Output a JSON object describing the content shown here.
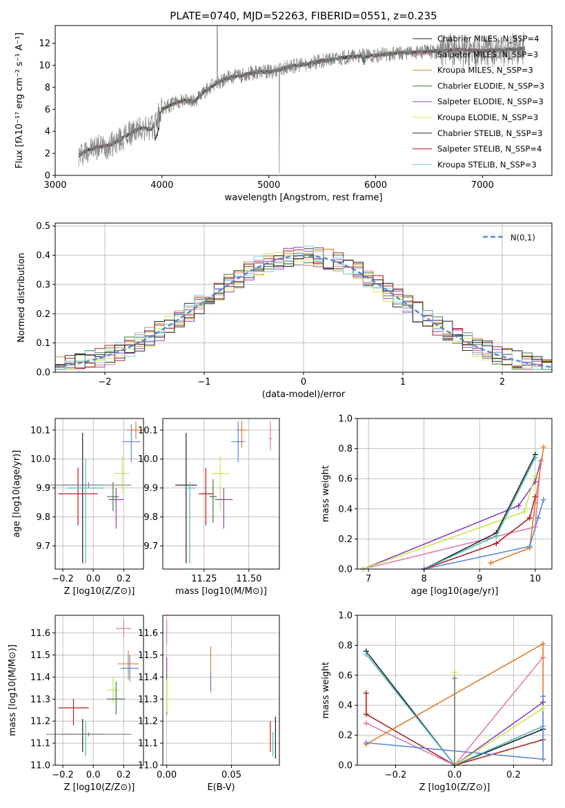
{
  "colors": {
    "chabrier_miles": "#1f1f1f",
    "salpeter_miles": "#e07b91",
    "kroupa_miles": "#d18d2a",
    "chabrier_elodie": "#3f7a3f",
    "salpeter_elodie": "#9a3fb8",
    "kroupa_elodie": "#d6e84a",
    "chabrier_stelib": "#2b2b2b",
    "salpeter_stelib": "#b01e1e",
    "kroupa_stelib": "#7fd6e0",
    "blue": "#5b86d6",
    "orange": "#e07b2a",
    "pink": "#e07bb0",
    "purple": "#8a3fb8",
    "lime": "#c8e84a",
    "teal": "#4fb8b8",
    "grey": "#808080"
  },
  "chart_data": [
    {
      "id": "spectrum",
      "type": "line",
      "title": "PLATE=0740, MJD=52263, FIBERID=0551, z=0.235",
      "xlabel": "wavelength [Angstrom, rest frame]",
      "ylabel": "Flux [fλ10⁻¹⁷ erg cm⁻² s⁻¹ A⁻¹]",
      "xlim": [
        3000,
        7650
      ],
      "ylim": [
        0,
        13.6
      ],
      "xticks": [
        3000,
        4000,
        5000,
        6000,
        7000
      ],
      "yticks": [
        0,
        2,
        4,
        6,
        8,
        10,
        12
      ],
      "continuum": [
        [
          3220,
          1.8
        ],
        [
          3300,
          2.3
        ],
        [
          3400,
          2.6
        ],
        [
          3500,
          2.7
        ],
        [
          3600,
          3.2
        ],
        [
          3700,
          3.8
        ],
        [
          3800,
          4.3
        ],
        [
          3900,
          4.2
        ],
        [
          4000,
          6.0
        ],
        [
          4100,
          6.5
        ],
        [
          4200,
          6.8
        ],
        [
          4300,
          6.7
        ],
        [
          4400,
          7.6
        ],
        [
          4500,
          8.3
        ],
        [
          4600,
          8.8
        ],
        [
          4700,
          9.0
        ],
        [
          4800,
          9.2
        ],
        [
          4900,
          9.4
        ],
        [
          5000,
          9.4
        ],
        [
          5100,
          9.6
        ],
        [
          5200,
          9.9
        ],
        [
          5300,
          10.0
        ],
        [
          5400,
          10.2
        ],
        [
          5500,
          10.4
        ],
        [
          5600,
          10.5
        ],
        [
          5700,
          10.7
        ],
        [
          5800,
          10.8
        ],
        [
          5900,
          10.8
        ],
        [
          6000,
          10.9
        ],
        [
          6200,
          11.1
        ],
        [
          6400,
          11.2
        ],
        [
          6600,
          11.3
        ],
        [
          6800,
          11.4
        ],
        [
          7000,
          11.3
        ],
        [
          7200,
          11.4
        ],
        [
          7400,
          11.5
        ]
      ],
      "legend": [
        "Chabrier MILES, N_SSP=4",
        "Salpeter MILES, N_SSP=3",
        "Kroupa MILES, N_SSP=3",
        "Chabrier ELODIE, N_SSP=3",
        "Salpeter ELODIE, N_SSP=3",
        "Kroupa ELODIE, N_SSP=3",
        "Chabrier STELIB, N_SSP=3",
        "Salpeter STELIB, N_SSP=4",
        "Kroupa STELIB, N_SSP=3"
      ],
      "legend_placement": "upper right",
      "grid": false
    },
    {
      "id": "residuals",
      "type": "bar",
      "xlabel": "(data-model)/error",
      "ylabel": "Normed distribution",
      "xlim": [
        -2.5,
        2.5
      ],
      "ylim": [
        0,
        0.51
      ],
      "xticks": [
        -2,
        -1,
        0,
        1,
        2
      ],
      "yticks": [
        0.0,
        0.1,
        0.2,
        0.3,
        0.4,
        0.5
      ],
      "bin_width": 0.1,
      "curve_label": "N(0,1)",
      "legend_placement": "upper right",
      "grid": true
    },
    {
      "id": "age_vs_Z",
      "type": "scatter",
      "xlabel": "Z [log10(Z/Z⊙)]",
      "ylabel": "age  [log10(age/yr)]",
      "xlim": [
        -0.25,
        0.33
      ],
      "ylim": [
        9.62,
        10.14
      ],
      "xticks": [
        -0.2,
        0.0,
        0.2
      ],
      "yticks": [
        9.7,
        9.8,
        9.9,
        10.0,
        10.1
      ],
      "points": [
        {
          "x": -0.07,
          "y": 9.91,
          "xerr": 0.14,
          "ylo": 9.64,
          "yhi": 10.09,
          "c": "chabrier_miles"
        },
        {
          "x": 0.28,
          "y": 10.1,
          "xerr": 0.06,
          "ylo": 10.07,
          "yhi": 10.13,
          "c": "orange"
        },
        {
          "x": 0.25,
          "y": 10.06,
          "xerr": 0.06,
          "ylo": 9.99,
          "yhi": 10.12,
          "c": "blue"
        },
        {
          "x": 0.19,
          "y": 9.95,
          "xerr": 0.05,
          "ylo": 9.88,
          "yhi": 10.01,
          "c": "lime"
        },
        {
          "x": 0.15,
          "y": 9.86,
          "xerr": 0.05,
          "ylo": 9.76,
          "yhi": 9.9,
          "c": "purple"
        },
        {
          "x": 0.13,
          "y": 9.87,
          "xerr": 0.04,
          "ylo": 9.82,
          "yhi": 9.92,
          "c": "chabrier_elodie"
        },
        {
          "x": -0.1,
          "y": 9.88,
          "xerr": 0.13,
          "ylo": 9.77,
          "yhi": 9.97,
          "c": "salpeter_stelib"
        },
        {
          "x": -0.05,
          "y": 9.9,
          "xerr": 0.12,
          "ylo": 9.64,
          "yhi": 10.0,
          "c": "teal"
        },
        {
          "x": -0.03,
          "y": 9.91,
          "xerr": 0.28,
          "ylo": 9.9,
          "yhi": 9.92,
          "c": "grey"
        }
      ],
      "grid": true
    },
    {
      "id": "age_vs_mass",
      "type": "scatter",
      "xlabel": "mass [log10(M/M⊙)]",
      "xlim": [
        11.02,
        11.67
      ],
      "ylim": [
        9.62,
        10.14
      ],
      "xticks": [
        11.0,
        11.25,
        11.5
      ],
      "yticks": [
        9.7,
        9.8,
        9.9,
        10.0,
        10.1
      ],
      "points": [
        {
          "x": 11.15,
          "y": 9.91,
          "xerr": 0.06,
          "ylo": 9.64,
          "yhi": 10.09,
          "c": "chabrier_miles"
        },
        {
          "x": 11.46,
          "y": 10.1,
          "xerr": 0.03,
          "ylo": 10.04,
          "yhi": 10.13,
          "c": "orange"
        },
        {
          "x": 11.44,
          "y": 10.06,
          "xerr": 0.04,
          "ylo": 9.99,
          "yhi": 10.13,
          "c": "blue"
        },
        {
          "x": 11.62,
          "y": 10.07,
          "xerr": 0.01,
          "ylo": 10.03,
          "yhi": 10.13,
          "c": "pink"
        },
        {
          "x": 11.34,
          "y": 9.95,
          "xerr": 0.05,
          "ylo": 9.82,
          "yhi": 10.01,
          "c": "lime"
        },
        {
          "x": 11.36,
          "y": 9.86,
          "xerr": 0.05,
          "ylo": 9.76,
          "yhi": 9.9,
          "c": "purple"
        },
        {
          "x": 11.3,
          "y": 9.87,
          "xerr": 0.02,
          "ylo": 9.78,
          "yhi": 9.93,
          "c": "chabrier_elodie"
        },
        {
          "x": 11.26,
          "y": 9.88,
          "xerr": 0.04,
          "ylo": 9.77,
          "yhi": 9.97,
          "c": "salpeter_stelib"
        },
        {
          "x": 11.17,
          "y": 9.9,
          "xerr": 0.03,
          "ylo": 9.64,
          "yhi": 9.92,
          "c": "teal"
        }
      ],
      "grid": true
    },
    {
      "id": "weight_vs_age",
      "type": "line",
      "xlabel": "age  [log10(age/yr)]",
      "ylabel": "mass weight",
      "xlim": [
        6.8,
        10.3
      ],
      "ylim": [
        0,
        1.0
      ],
      "xticks": [
        7,
        8,
        9,
        10
      ],
      "yticks": [
        0.0,
        0.2,
        0.4,
        0.6,
        0.8,
        1.0
      ],
      "series": [
        {
          "c": "purple",
          "x": [
            6.9,
            9.7,
            10.0,
            10.1
          ],
          "y": [
            0.0,
            0.42,
            0.58,
            0.72
          ]
        },
        {
          "c": "pink",
          "x": [
            6.9,
            10.0,
            10.1
          ],
          "y": [
            0.0,
            0.28,
            0.72
          ]
        },
        {
          "c": "lime",
          "x": [
            6.9,
            9.8,
            10.0
          ],
          "y": [
            0.0,
            0.38,
            0.62
          ]
        },
        {
          "c": "chabrier_miles",
          "x": [
            8.0,
            9.3,
            10.0
          ],
          "y": [
            0.0,
            0.24,
            0.76
          ]
        },
        {
          "c": "teal",
          "x": [
            8.0,
            9.3,
            10.0
          ],
          "y": [
            0.0,
            0.22,
            0.74
          ]
        },
        {
          "c": "salpeter_stelib",
          "x": [
            8.0,
            9.3,
            9.9,
            10.0
          ],
          "y": [
            0.0,
            0.17,
            0.34,
            0.48
          ]
        },
        {
          "c": "orange",
          "x": [
            9.2,
            9.9,
            10.0,
            10.15
          ],
          "y": [
            0.04,
            0.14,
            0.44,
            0.81
          ]
        },
        {
          "c": "blue",
          "x": [
            8.0,
            9.9,
            10.05,
            10.15
          ],
          "y": [
            0.0,
            0.15,
            0.34,
            0.46
          ]
        }
      ],
      "grid": true
    },
    {
      "id": "mass_vs_Z",
      "type": "scatter",
      "xlabel": "Z [log10(Z/Z⊙)]",
      "ylabel": "mass [log10(M/M⊙)]",
      "xlim": [
        -0.25,
        0.33
      ],
      "ylim": [
        11.0,
        11.68
      ],
      "xticks": [
        -0.2,
        0.0,
        0.2
      ],
      "yticks": [
        11.0,
        11.1,
        11.2,
        11.3,
        11.4,
        11.5,
        11.6
      ],
      "points": [
        {
          "x": -0.07,
          "y": 11.14,
          "xerr": 0.14,
          "ylo": 11.06,
          "yhi": 11.21,
          "c": "chabrier_miles"
        },
        {
          "x": 0.23,
          "y": 11.46,
          "xerr": 0.07,
          "ylo": 11.39,
          "yhi": 11.52,
          "c": "orange"
        },
        {
          "x": 0.24,
          "y": 11.44,
          "xerr": 0.06,
          "ylo": 11.38,
          "yhi": 11.5,
          "c": "blue"
        },
        {
          "x": 0.2,
          "y": 11.62,
          "xerr": 0.05,
          "ylo": 11.58,
          "yhi": 11.66,
          "c": "pink"
        },
        {
          "x": 0.13,
          "y": 11.34,
          "xerr": 0.04,
          "ylo": 11.28,
          "yhi": 11.4,
          "c": "lime"
        },
        {
          "x": 0.15,
          "y": 11.3,
          "xerr": 0.06,
          "ylo": 11.23,
          "yhi": 11.38,
          "c": "chabrier_elodie"
        },
        {
          "x": -0.13,
          "y": 11.26,
          "xerr": 0.1,
          "ylo": 11.18,
          "yhi": 11.3,
          "c": "salpeter_stelib"
        },
        {
          "x": -0.05,
          "y": 11.14,
          "xerr": 0.12,
          "ylo": 11.04,
          "yhi": 11.2,
          "c": "teal"
        },
        {
          "x": -0.03,
          "y": 11.14,
          "xerr": 0.28,
          "ylo": 11.13,
          "yhi": 11.15,
          "c": "grey"
        }
      ],
      "grid": true
    },
    {
      "id": "mass_vs_ebv",
      "type": "scatter",
      "xlabel": "E(B-V)",
      "xlim": [
        -0.003,
        0.087
      ],
      "ylim": [
        11.0,
        11.68
      ],
      "xticks": [
        0.0,
        0.05
      ],
      "yticks": [
        11.0,
        11.1,
        11.2,
        11.3,
        11.4,
        11.5,
        11.6
      ],
      "points": [
        {
          "x": 0.0,
          "y": 11.6,
          "ylo": 11.55,
          "yhi": 11.66,
          "c": "pink"
        },
        {
          "x": 0.0,
          "y": 11.45,
          "ylo": 11.4,
          "yhi": 11.49,
          "c": "purple"
        },
        {
          "x": 0.0,
          "y": 11.3,
          "ylo": 11.23,
          "yhi": 11.41,
          "c": "chabrier_elodie"
        },
        {
          "x": 0.0,
          "y": 11.3,
          "ylo": 11.24,
          "yhi": 11.39,
          "c": "lime"
        },
        {
          "x": 0.034,
          "y": 11.43,
          "ylo": 11.33,
          "yhi": 11.54,
          "c": "orange"
        },
        {
          "x": 0.034,
          "y": 11.38,
          "ylo": 11.34,
          "yhi": 11.42,
          "c": "blue"
        },
        {
          "x": 0.08,
          "y": 11.15,
          "ylo": 11.06,
          "yhi": 11.2,
          "c": "salpeter_stelib"
        },
        {
          "x": 0.082,
          "y": 11.1,
          "ylo": 11.04,
          "yhi": 11.15,
          "c": "teal"
        },
        {
          "x": 0.084,
          "y": 11.12,
          "ylo": 11.03,
          "yhi": 11.22,
          "c": "chabrier_miles"
        }
      ],
      "grid": true
    },
    {
      "id": "weight_vs_Z",
      "type": "line",
      "xlabel": "Z [log10(Z/Z⊙)]",
      "ylabel": "mass weight",
      "xlim": [
        -0.33,
        0.33
      ],
      "ylim": [
        0,
        1.0
      ],
      "xticks": [
        -0.2,
        0.0,
        0.2
      ],
      "yticks": [
        0.0,
        0.2,
        0.4,
        0.6,
        0.8,
        1.0
      ],
      "series": [
        {
          "c": "chabrier_miles",
          "x": [
            -0.3,
            0.0,
            0.3
          ],
          "y": [
            0.76,
            0.0,
            0.24
          ]
        },
        {
          "c": "teal",
          "x": [
            -0.3,
            0.0,
            0.3
          ],
          "y": [
            0.74,
            0.0,
            0.26
          ]
        },
        {
          "c": "salpeter_stelib",
          "x": [
            -0.3,
            -0.3,
            0.0,
            0.3
          ],
          "y": [
            0.48,
            0.34,
            0.0,
            0.17
          ]
        },
        {
          "c": "pink",
          "x": [
            -0.3,
            0.0,
            0.3
          ],
          "y": [
            0.28,
            0.0,
            0.72
          ]
        },
        {
          "c": "orange",
          "x": [
            -0.3,
            0.3,
            0.3
          ],
          "y": [
            0.14,
            0.81,
            0.04
          ]
        },
        {
          "c": "blue",
          "x": [
            -0.3,
            0.3,
            0.3
          ],
          "y": [
            0.15,
            0.04,
            0.46
          ]
        },
        {
          "c": "purple",
          "x": [
            0.0,
            0.3
          ],
          "y": [
            0.0,
            0.42
          ]
        },
        {
          "c": "lime",
          "x": [
            0.0,
            0.0,
            0.3
          ],
          "y": [
            0.62,
            0.0,
            0.38
          ]
        },
        {
          "c": "grey",
          "x": [
            0.0,
            0.0
          ],
          "y": [
            0.58,
            0.0
          ]
        }
      ],
      "grid": true
    }
  ]
}
